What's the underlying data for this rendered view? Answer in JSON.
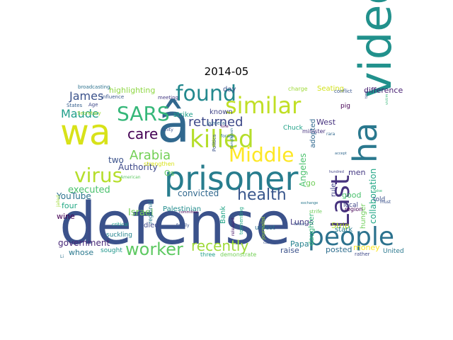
{
  "title": "2014-05",
  "words": [
    {
      "text": "defense",
      "color": "#3b528b"
    },
    {
      "text": "â",
      "color": "#31688e"
    },
    {
      "text": "wa",
      "color": "#d8e219"
    },
    {
      "text": "prisoner",
      "color": "#287d8e"
    },
    {
      "text": "video",
      "color": "#21918c"
    },
    {
      "text": "Last",
      "color": "#46327e"
    },
    {
      "text": "ha",
      "color": "#2a788e"
    },
    {
      "text": "killed",
      "color": "#b5de2b"
    },
    {
      "text": "people",
      "color": "#2c728e"
    },
    {
      "text": "similar",
      "color": "#c0df25"
    },
    {
      "text": "found",
      "color": "#23898e"
    },
    {
      "text": "Middle",
      "color": "#fde725"
    },
    {
      "text": "SARS",
      "color": "#35b779"
    },
    {
      "text": "virus",
      "color": "#b5de2b"
    },
    {
      "text": "health",
      "color": "#39568c"
    },
    {
      "text": "worker",
      "color": "#5ec962"
    },
    {
      "text": "care",
      "color": "#440154"
    },
    {
      "text": "returned",
      "color": "#3e4989"
    },
    {
      "text": "recently",
      "color": "#a0da39"
    },
    {
      "text": "Arabia",
      "color": "#73d056"
    },
    {
      "text": "James",
      "color": "#3b528b"
    },
    {
      "text": "Maude",
      "color": "#1f9e89"
    },
    {
      "text": "highlighting",
      "color": "#8fd744"
    },
    {
      "text": "difference",
      "color": "#482173"
    },
    {
      "text": "Seating",
      "color": "#d2e21b"
    },
    {
      "text": "executed",
      "color": "#4ac16d"
    },
    {
      "text": "convicted",
      "color": "#31688e"
    },
    {
      "text": "Israel",
      "color": "#73d056"
    },
    {
      "text": "Palestinian",
      "color": "#228c8d"
    },
    {
      "text": "government",
      "color": "#482878"
    },
    {
      "text": "collaboration",
      "color": "#21a685"
    },
    {
      "text": "hunger",
      "color": "#6ece58"
    },
    {
      "text": "Angeles",
      "color": "#4ac16d"
    },
    {
      "text": "Lungs",
      "color": "#443a83"
    },
    {
      "text": "posted",
      "color": "#2e6e8e"
    },
    {
      "text": "money",
      "color": "#fde725"
    },
    {
      "text": "Papa",
      "color": "#26828e"
    },
    {
      "text": "daughter",
      "color": "#35b779"
    },
    {
      "text": "raise",
      "color": "#3b528b"
    },
    {
      "text": "whose",
      "color": "#2a788e"
    },
    {
      "text": "Authority",
      "color": "#3e4989"
    },
    {
      "text": "Strip",
      "color": "#b5de2b"
    },
    {
      "text": "West",
      "color": "#46327e"
    },
    {
      "text": "Bank",
      "color": "#20a486"
    },
    {
      "text": "known",
      "color": "#414487"
    },
    {
      "text": "strike",
      "color": "#1f9e89"
    },
    {
      "text": "YouTube",
      "color": "#2c728e"
    },
    {
      "text": "four",
      "color": "#22a884"
    },
    {
      "text": "two",
      "color": "#3b528b"
    },
    {
      "text": "died",
      "color": "#3e4989"
    },
    {
      "text": "wine",
      "color": "#440154"
    },
    {
      "text": "go",
      "color": "#6ece58"
    },
    {
      "text": "good",
      "color": "#4ac16d"
    },
    {
      "text": "men",
      "color": "#443983"
    },
    {
      "text": "day",
      "color": "#3b528b"
    },
    {
      "text": "rule",
      "color": "#414487"
    },
    {
      "text": "adopted",
      "color": "#31688e"
    },
    {
      "text": "stark",
      "color": "#287d8e"
    },
    {
      "text": "told",
      "color": "#3b528b"
    },
    {
      "text": "local",
      "color": "#404688"
    },
    {
      "text": "Os",
      "color": "#5ec962"
    },
    {
      "text": "suckling",
      "color": "#25848e"
    },
    {
      "text": "sought",
      "color": "#1f968b"
    },
    {
      "text": "United",
      "color": "#2a788e"
    },
    {
      "text": "pig",
      "color": "#440154"
    },
    {
      "text": "charge",
      "color": "#9fda3a"
    },
    {
      "text": "Chuck",
      "color": "#1fa187"
    },
    {
      "text": "minister",
      "color": "#46327e"
    },
    {
      "text": "broadcasting",
      "color": "#2c728e"
    },
    {
      "text": "influence",
      "color": "#39568c"
    },
    {
      "text": "meeting",
      "color": "#443983"
    },
    {
      "text": "Age",
      "color": "#3e4989"
    },
    {
      "text": "States",
      "color": "#355f8d"
    },
    {
      "text": "Secretary",
      "color": "#a0da39"
    },
    {
      "text": "American",
      "color": "#5ec962"
    },
    {
      "text": "Unity",
      "color": "#3b528b"
    },
    {
      "text": "strengthen",
      "color": "#d8e219"
    },
    {
      "text": "Jazeera",
      "color": "#31688e"
    },
    {
      "text": "conflict",
      "color": "#39568c"
    },
    {
      "text": "exchange",
      "color": "#2a788e"
    },
    {
      "text": "region",
      "color": "#440154"
    },
    {
      "text": "unrest",
      "color": "#2c728e"
    },
    {
      "text": "journalist",
      "color": "#a0da39"
    },
    {
      "text": "tormenting",
      "color": "#22a884"
    },
    {
      "text": "released",
      "color": "#48186a"
    },
    {
      "text": "regional",
      "color": "#2a788e"
    },
    {
      "text": "critical",
      "color": "#1f9e89"
    },
    {
      "text": "family",
      "color": "#3b528b"
    },
    {
      "text": "three",
      "color": "#1f9e89"
    },
    {
      "text": "demonstrate",
      "color": "#73d056"
    },
    {
      "text": "committee",
      "color": "#440154"
    },
    {
      "text": "forage",
      "color": "#2c728e"
    },
    {
      "text": "Taliban",
      "color": "#39568c"
    },
    {
      "text": "hundred",
      "color": "#414487"
    },
    {
      "text": "accept",
      "color": "#31688e"
    },
    {
      "text": "false",
      "color": "#35b779"
    },
    {
      "text": "must",
      "color": "#3b528b"
    },
    {
      "text": "rather",
      "color": "#3e4989"
    },
    {
      "text": "strife",
      "color": "#6ece58"
    },
    {
      "text": "rara",
      "color": "#31688e"
    },
    {
      "text": "lone",
      "color": "#440154"
    },
    {
      "text": "case",
      "color": "#3b528b"
    },
    {
      "text": "Li",
      "color": "#2c728e"
    },
    {
      "text": "compensation",
      "color": "#414487"
    },
    {
      "text": "jailed",
      "color": "#a0da39"
    },
    {
      "text": "time",
      "color": "#3e4989"
    },
    {
      "text": "victim",
      "color": "#35b779"
    },
    {
      "text": "Politics",
      "color": "#3b528b"
    },
    {
      "text": "Bangladesh",
      "color": "#2a788e"
    }
  ]
}
